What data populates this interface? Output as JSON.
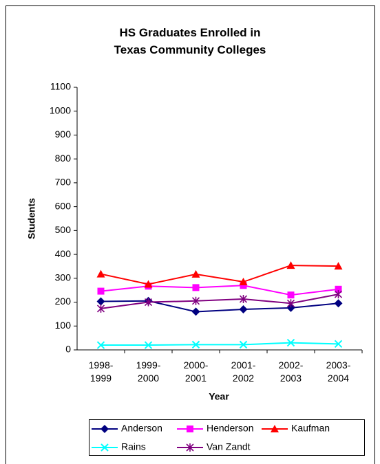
{
  "chart_data": {
    "type": "line",
    "title": "HS Graduates Enrolled in\nTexas Community Colleges",
    "x_label": "Year",
    "y_label": "Students",
    "categories": [
      "1998-\n1999",
      "1999-\n2000",
      "2000-\n2001",
      "2001-\n2002",
      "2002-\n2003",
      "2003-\n2004"
    ],
    "series": [
      {
        "name": "Anderson",
        "color": "#000080",
        "marker": "diamond",
        "values": [
          203,
          205,
          160,
          170,
          176,
          195
        ]
      },
      {
        "name": "Henderson",
        "color": "#ff00ff",
        "marker": "square",
        "values": [
          246,
          267,
          261,
          270,
          230,
          254
        ]
      },
      {
        "name": "Kaufman",
        "color": "#ff0000",
        "marker": "triangle",
        "values": [
          318,
          275,
          317,
          285,
          354,
          351
        ]
      },
      {
        "name": "Rains",
        "color": "#00ffff",
        "marker": "x",
        "values": [
          20,
          20,
          22,
          22,
          30,
          25
        ]
      },
      {
        "name": "Van Zandt",
        "color": "#800080",
        "marker": "star",
        "values": [
          173,
          200,
          205,
          213,
          195,
          233
        ]
      }
    ],
    "ylim": [
      0,
      1100
    ],
    "yticks": [
      0,
      100,
      200,
      300,
      400,
      500,
      600,
      700,
      800,
      900,
      1000,
      1100
    ],
    "grid": false,
    "legend": "bottom"
  }
}
